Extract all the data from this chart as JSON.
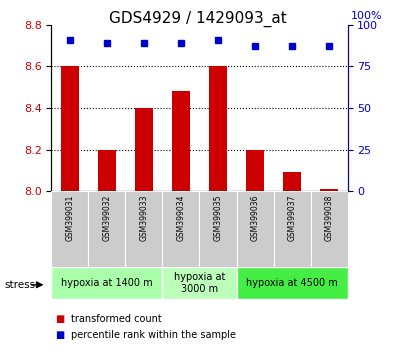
{
  "title": "GDS4929 / 1429093_at",
  "samples": [
    "GSM399031",
    "GSM399032",
    "GSM399033",
    "GSM399034",
    "GSM399035",
    "GSM399036",
    "GSM399037",
    "GSM399038"
  ],
  "transformed_counts": [
    8.6,
    8.2,
    8.4,
    8.48,
    8.6,
    8.2,
    8.09,
    8.01
  ],
  "percentile_ranks": [
    91,
    89,
    89,
    89,
    91,
    87,
    87,
    87
  ],
  "bar_bottom": 8.0,
  "ylim_left": [
    8.0,
    8.8
  ],
  "ylim_right": [
    0,
    100
  ],
  "yticks_left": [
    8.0,
    8.2,
    8.4,
    8.6,
    8.8
  ],
  "yticks_right": [
    0,
    25,
    50,
    75,
    100
  ],
  "bar_color": "#cc0000",
  "dot_color": "#0000cc",
  "groups": [
    {
      "label": "hypoxia at 1400 m",
      "start": 0,
      "end": 3,
      "color": "#aaffaa"
    },
    {
      "label": "hypoxia at\n3000 m",
      "start": 3,
      "end": 5,
      "color": "#bbffbb"
    },
    {
      "label": "hypoxia at 4500 m",
      "start": 5,
      "end": 8,
      "color": "#44ee44"
    }
  ],
  "stress_label": "stress",
  "legend_items": [
    {
      "color": "#cc0000",
      "label": "transformed count"
    },
    {
      "color": "#0000cc",
      "label": "percentile rank within the sample"
    }
  ],
  "grid_dotted_at": [
    8.2,
    8.4,
    8.6
  ],
  "background_color": "#ffffff",
  "title_fontsize": 11,
  "tick_fontsize": 8,
  "sample_fontsize": 5.5,
  "group_fontsize": 7,
  "legend_fontsize": 7
}
